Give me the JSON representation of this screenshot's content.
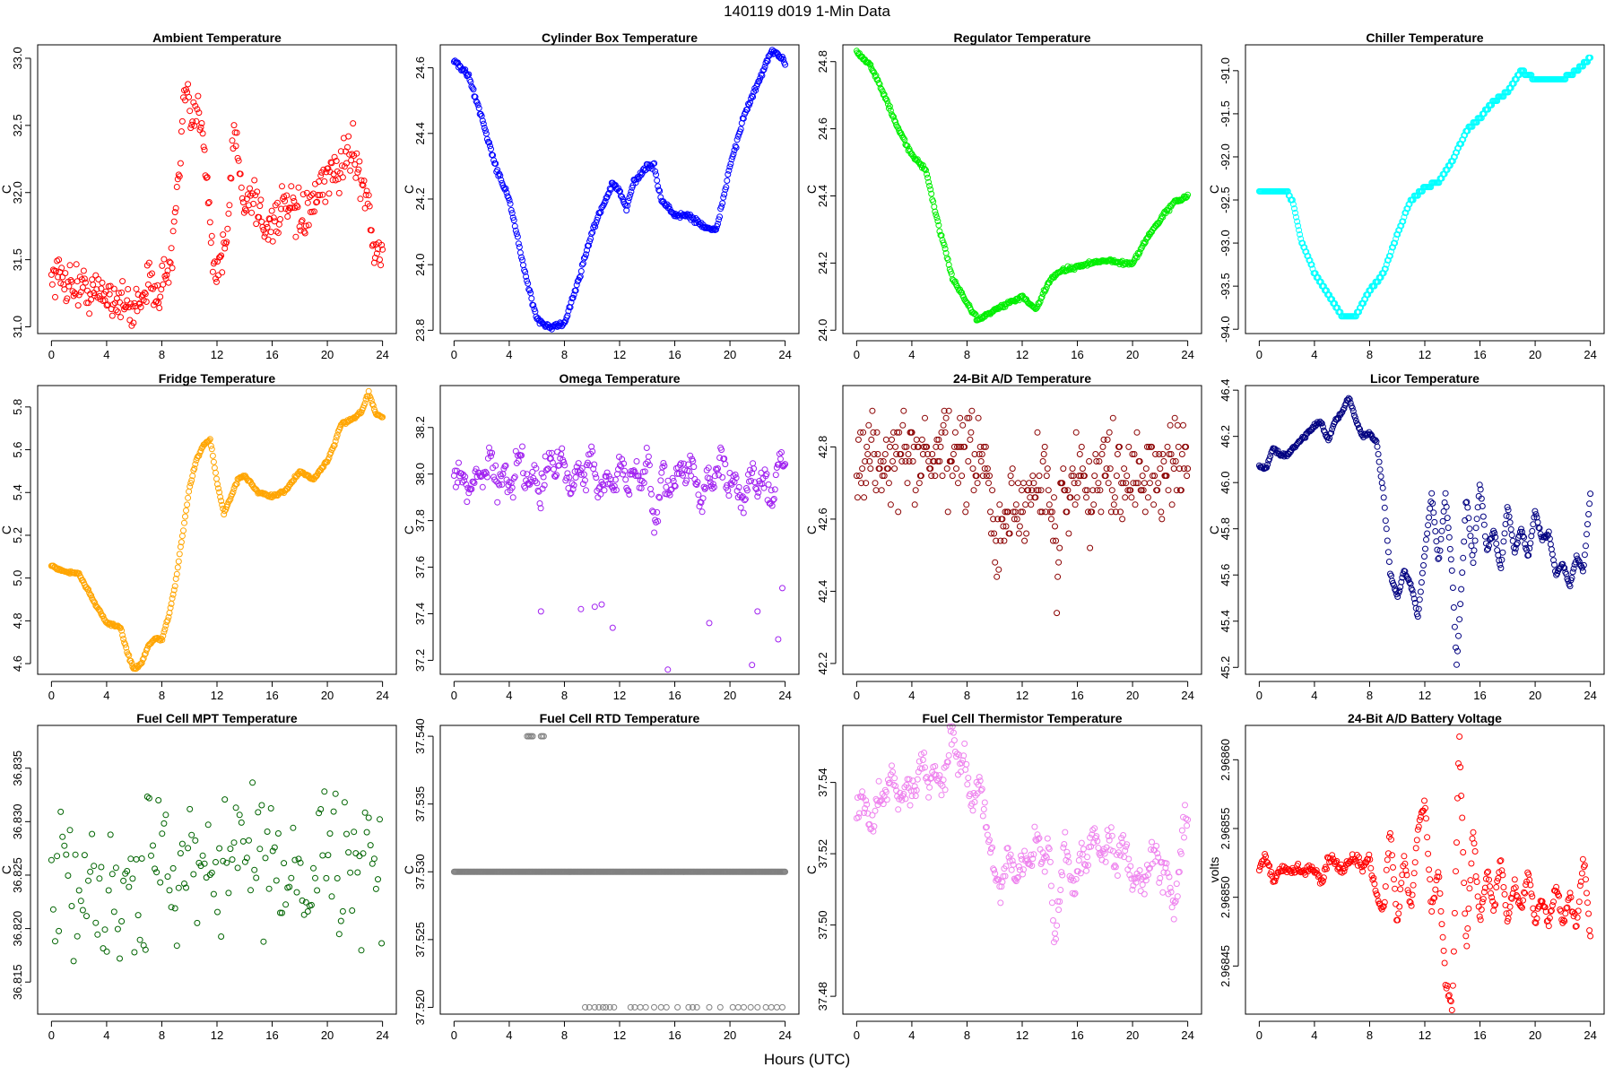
{
  "figure": {
    "main_title": "140119   d019   1-Min Data",
    "xlabel": "Hours (UTC)"
  },
  "chart_data": [
    {
      "type": "scatter",
      "title": "Ambient Temperature",
      "ylabel": "C",
      "color": "#ff0000",
      "xlim": [
        -1,
        25
      ],
      "ylim": [
        30.95,
        33.1
      ],
      "xticks": [
        0,
        4,
        8,
        12,
        16,
        20,
        24
      ],
      "yticks": [
        31.0,
        31.5,
        32.0,
        32.5,
        33.0
      ],
      "ytick_labels": [
        "31.0",
        "31.5",
        "32.0",
        "32.5",
        "33.0"
      ],
      "noise": 0.08,
      "series_x": [
        0,
        1,
        2,
        3,
        4,
        5,
        5.8,
        6.5,
        7,
        8,
        8.7,
        9,
        9.3,
        9.5,
        9.8,
        10.2,
        10.6,
        11,
        11.5,
        11.8,
        12.3,
        12.8,
        13.2,
        13.6,
        14,
        14.5,
        15,
        15.5,
        16,
        17,
        18,
        19,
        20,
        21,
        21.5,
        22,
        22.5,
        23,
        23.5,
        24
      ],
      "series_y": [
        31.4,
        31.35,
        31.3,
        31.25,
        31.25,
        31.2,
        31.1,
        31.25,
        31.3,
        31.3,
        31.5,
        31.9,
        32.1,
        32.6,
        32.7,
        32.5,
        32.6,
        32.5,
        31.8,
        31.4,
        31.5,
        31.7,
        32.5,
        32.2,
        31.9,
        32.0,
        31.9,
        31.7,
        31.8,
        31.9,
        31.8,
        31.9,
        32.1,
        32.2,
        32.3,
        32.3,
        32.1,
        31.9,
        31.5,
        31.6
      ]
    },
    {
      "type": "scatter",
      "title": "Cylinder Box Temperature",
      "ylabel": "C",
      "color": "#0000ff",
      "xlim": [
        -1,
        25
      ],
      "ylim": [
        23.79,
        24.67
      ],
      "xticks": [
        0,
        4,
        8,
        12,
        16,
        20,
        24
      ],
      "yticks": [
        23.8,
        24.0,
        24.2,
        24.4,
        24.6
      ],
      "ytick_labels": [
        "23.8",
        "24.0",
        "24.2",
        "24.4",
        "24.6"
      ],
      "noise": 0.004,
      "series_x": [
        0,
        1,
        2,
        3,
        4,
        5,
        6,
        7,
        8,
        9,
        10,
        11,
        11.5,
        12,
        12.5,
        13,
        14,
        14.5,
        15,
        16,
        17,
        18,
        19,
        20,
        21,
        22,
        23,
        24
      ],
      "series_y": [
        24.62,
        24.58,
        24.45,
        24.3,
        24.2,
        24.0,
        23.83,
        23.81,
        23.82,
        23.95,
        24.1,
        24.2,
        24.25,
        24.22,
        24.17,
        24.25,
        24.3,
        24.3,
        24.2,
        24.15,
        24.15,
        24.12,
        24.1,
        24.3,
        24.45,
        24.55,
        24.65,
        24.62
      ]
    },
    {
      "type": "scatter",
      "title": "Regulator Temperature",
      "ylabel": "C",
      "color": "#00ee00",
      "xlim": [
        -1,
        25
      ],
      "ylim": [
        23.99,
        24.85
      ],
      "xticks": [
        0,
        4,
        8,
        12,
        16,
        20,
        24
      ],
      "yticks": [
        24.0,
        24.2,
        24.4,
        24.6,
        24.8
      ],
      "ytick_labels": [
        "24.0",
        "24.2",
        "24.4",
        "24.6",
        "24.8"
      ],
      "noise": 0.003,
      "series_x": [
        0,
        1,
        2,
        3,
        4,
        5,
        6,
        7,
        8,
        8.8,
        10,
        11,
        12,
        13,
        14,
        15,
        16,
        17,
        18,
        19,
        20,
        21,
        22,
        23,
        24
      ],
      "series_y": [
        24.83,
        24.79,
        24.7,
        24.6,
        24.52,
        24.48,
        24.3,
        24.15,
        24.08,
        24.03,
        24.06,
        24.08,
        24.1,
        24.06,
        24.15,
        24.18,
        24.19,
        24.2,
        24.21,
        24.2,
        24.2,
        24.27,
        24.33,
        24.38,
        24.4
      ]
    },
    {
      "type": "scatter",
      "title": "Chiller Temperature",
      "ylabel": "C",
      "color": "#00ffff",
      "xlim": [
        -1,
        25
      ],
      "ylim": [
        -94.05,
        -90.7
      ],
      "xticks": [
        0,
        4,
        8,
        12,
        16,
        20,
        24
      ],
      "yticks": [
        -94.0,
        -93.5,
        -93.0,
        -92.5,
        -92.0,
        -91.5,
        -91.0
      ],
      "ytick_labels": [
        "-94.0",
        "-93.5",
        "-93.0",
        "-92.5",
        "-92.0",
        "-91.5",
        "-91.0"
      ],
      "noise": 0,
      "quantize": 0.05,
      "series_x": [
        0,
        1,
        2,
        2.5,
        3,
        4,
        5,
        6,
        7,
        8,
        9,
        10,
        11,
        12,
        13,
        14,
        15,
        16,
        17,
        18,
        19,
        20,
        21,
        22,
        23,
        24
      ],
      "series_y": [
        -92.4,
        -92.4,
        -92.4,
        -92.55,
        -92.95,
        -93.35,
        -93.6,
        -93.85,
        -93.85,
        -93.55,
        -93.35,
        -92.9,
        -92.5,
        -92.35,
        -92.3,
        -92.05,
        -91.7,
        -91.55,
        -91.35,
        -91.25,
        -91.0,
        -91.1,
        -91.1,
        -91.1,
        -91.0,
        -90.85
      ]
    },
    {
      "type": "scatter",
      "title": "Fridge Temperature",
      "ylabel": "C",
      "color": "#ffa500",
      "xlim": [
        -1,
        25
      ],
      "ylim": [
        4.55,
        5.9
      ],
      "xticks": [
        0,
        4,
        8,
        12,
        16,
        20,
        24
      ],
      "yticks": [
        4.6,
        4.8,
        5.0,
        5.2,
        5.4,
        5.6,
        5.8
      ],
      "ytick_labels": [
        "4.6",
        "4.8",
        "5.0",
        "5.2",
        "5.4",
        "5.6",
        "5.8"
      ],
      "noise": 0.003,
      "series_x": [
        0,
        0.5,
        1,
        2,
        3,
        4,
        5,
        5.5,
        6,
        6.5,
        7,
        7.5,
        8,
        8.5,
        9,
        9.5,
        10,
        10.5,
        11,
        11.5,
        12,
        12.5,
        13,
        13.5,
        14,
        15,
        16,
        17,
        18,
        19,
        20,
        20.5,
        21,
        22,
        22.5,
        23,
        23.5,
        24
      ],
      "series_y": [
        5.06,
        5.04,
        5.03,
        5.02,
        4.9,
        4.79,
        4.77,
        4.65,
        4.57,
        4.6,
        4.68,
        4.72,
        4.71,
        4.82,
        4.98,
        5.2,
        5.42,
        5.55,
        5.62,
        5.65,
        5.45,
        5.3,
        5.38,
        5.46,
        5.48,
        5.4,
        5.38,
        5.41,
        5.5,
        5.46,
        5.55,
        5.62,
        5.72,
        5.75,
        5.78,
        5.87,
        5.77,
        5.75
      ]
    },
    {
      "type": "scatter",
      "title": "Omega Temperature",
      "ylabel": "C",
      "color": "#a020f0",
      "xlim": [
        -1,
        25
      ],
      "ylim": [
        37.14,
        38.38
      ],
      "xticks": [
        0,
        4,
        8,
        12,
        16,
        20,
        24
      ],
      "yticks": [
        37.2,
        37.4,
        37.6,
        37.8,
        38.0,
        38.2
      ],
      "ytick_labels": [
        "37.2",
        "37.4",
        "37.6",
        "37.8",
        "38.0",
        "38.2"
      ],
      "noise": 0.03,
      "wave_amp": 0.09,
      "series_x": [
        0,
        2,
        4,
        6,
        8,
        9,
        10,
        11,
        12,
        13,
        14,
        14.5,
        15,
        16,
        17,
        18,
        19,
        20,
        21,
        22,
        23,
        24
      ],
      "series_y": [
        37.97,
        38.0,
        38.0,
        38.0,
        38.02,
        38.0,
        38.0,
        38.0,
        37.95,
        38.0,
        38.05,
        37.75,
        37.95,
        38.0,
        38.0,
        37.95,
        37.98,
        38.0,
        37.95,
        37.95,
        37.95,
        38.05
      ],
      "outliers_x": [
        6.3,
        9.2,
        10.2,
        10.7,
        11.5,
        15.5,
        18.5,
        21.6,
        22,
        23.5,
        23.8
      ],
      "outliers_y": [
        37.41,
        37.42,
        37.43,
        37.44,
        37.34,
        37.16,
        37.36,
        37.18,
        37.41,
        37.29,
        37.51
      ]
    },
    {
      "type": "scatter",
      "title": "24-Bit A/D Temperature",
      "ylabel": "C",
      "color": "#8b0000",
      "xlim": [
        -1,
        25
      ],
      "ylim": [
        42.17,
        42.97
      ],
      "xticks": [
        0,
        4,
        8,
        12,
        16,
        20,
        24
      ],
      "yticks": [
        42.2,
        42.4,
        42.6,
        42.8
      ],
      "ytick_labels": [
        "42.2",
        "42.4",
        "42.6",
        "42.8"
      ],
      "noise": 0.06,
      "quantize": 0.02,
      "series_x": [
        0,
        2,
        4,
        6,
        8,
        9,
        9.5,
        10,
        11,
        12,
        13,
        14,
        14.5,
        15,
        16,
        17,
        18,
        19,
        20,
        21,
        22,
        23,
        24
      ],
      "series_y": [
        42.77,
        42.77,
        42.77,
        42.77,
        42.77,
        42.77,
        42.7,
        42.55,
        42.6,
        42.62,
        42.72,
        42.7,
        42.45,
        42.68,
        42.72,
        42.7,
        42.72,
        42.74,
        42.74,
        42.72,
        42.72,
        42.74,
        42.76
      ]
    },
    {
      "type": "scatter",
      "title": "Licor Temperature",
      "ylabel": "C",
      "color": "#000080",
      "xlim": [
        -1,
        25
      ],
      "ylim": [
        45.17,
        46.42
      ],
      "xticks": [
        0,
        4,
        8,
        12,
        16,
        20,
        24
      ],
      "yticks": [
        45.2,
        45.4,
        45.6,
        45.8,
        46.0,
        46.2,
        46.4
      ],
      "ytick_labels": [
        "45.2",
        "45.4",
        "45.6",
        "45.8",
        "46.0",
        "46.2",
        "46.4"
      ],
      "noise": 0.004,
      "series_x": [
        0,
        0.5,
        1,
        1.5,
        2,
        3,
        4,
        4.5,
        5,
        5.5,
        6,
        6.5,
        7,
        7.5,
        8,
        8.5,
        9,
        9.5,
        10,
        10.5,
        11,
        11.5,
        12,
        12.5,
        13,
        13.5,
        14,
        14.3,
        14.8,
        15,
        15.5,
        16,
        16.5,
        17,
        17.5,
        18,
        18.5,
        19,
        19.5,
        20,
        20.5,
        21,
        21.5,
        22,
        22.5,
        23,
        23.5,
        24
      ],
      "series_y": [
        46.07,
        46.06,
        46.15,
        46.12,
        46.12,
        46.18,
        46.25,
        46.26,
        46.18,
        46.27,
        46.3,
        46.37,
        46.27,
        46.2,
        46.21,
        46.18,
        45.95,
        45.6,
        45.5,
        45.62,
        45.55,
        45.42,
        45.7,
        45.95,
        45.65,
        45.95,
        45.6,
        45.2,
        45.7,
        45.95,
        45.65,
        46.0,
        45.7,
        45.8,
        45.62,
        45.9,
        45.7,
        45.8,
        45.68,
        45.88,
        45.75,
        45.78,
        45.6,
        45.65,
        45.55,
        45.68,
        45.62,
        45.95
      ]
    },
    {
      "type": "scatter",
      "title": "Fuel Cell MPT Temperature",
      "ylabel": "C",
      "color": "#006400",
      "xlim": [
        -1,
        25
      ],
      "ylim": [
        36.812,
        36.839
      ],
      "xticks": [
        0,
        4,
        8,
        12,
        16,
        20,
        24
      ],
      "yticks": [
        36.815,
        36.82,
        36.825,
        36.83,
        36.835
      ],
      "ytick_labels": [
        "36.815",
        "36.820",
        "36.825",
        "36.830",
        "36.835"
      ],
      "noise": 0.0032,
      "step": 2,
      "series_x": [
        0,
        4,
        6,
        8,
        10,
        12,
        16,
        20,
        24
      ],
      "series_y": [
        36.824,
        36.824,
        36.823,
        36.826,
        36.827,
        36.827,
        36.826,
        36.827,
        36.826
      ]
    },
    {
      "type": "scatter",
      "title": "Fuel Cell RTD Temperature",
      "ylabel": "C",
      "color": "#808080",
      "xlim": [
        -1,
        25
      ],
      "ylim": [
        37.5195,
        37.5408
      ],
      "xticks": [
        0,
        4,
        8,
        12,
        16,
        20,
        24
      ],
      "yticks": [
        37.52,
        37.525,
        37.53,
        37.535,
        37.54
      ],
      "ytick_labels": [
        "37.520",
        "37.525",
        "37.530",
        "37.535",
        "37.540"
      ],
      "noise": 0,
      "series_x": [
        0,
        24
      ],
      "series_y": [
        37.53,
        37.53
      ],
      "outliers_x": [
        5.3,
        5.4,
        5.5,
        5.6,
        5.7,
        6.3,
        6.4,
        6.5,
        9.5,
        9.8,
        10.2,
        10.5,
        10.8,
        11.0,
        11.3,
        11.6,
        12.8,
        13.1,
        13.5,
        13.9,
        14.5,
        15.0,
        15.4,
        16.2,
        17.0,
        17.3,
        17.6,
        18.5,
        19.3,
        20.2,
        20.6,
        21.0,
        21.5,
        22.0,
        22.6,
        23.0,
        23.4,
        23.8
      ],
      "outliers_y": [
        37.54,
        37.54,
        37.54,
        37.54,
        37.54,
        37.54,
        37.54,
        37.54,
        37.52,
        37.52,
        37.52,
        37.52,
        37.52,
        37.52,
        37.52,
        37.52,
        37.52,
        37.52,
        37.52,
        37.52,
        37.52,
        37.52,
        37.52,
        37.52,
        37.52,
        37.52,
        37.52,
        37.52,
        37.52,
        37.52,
        37.52,
        37.52,
        37.52,
        37.52,
        37.52,
        37.52,
        37.52,
        37.52
      ]
    },
    {
      "type": "scatter",
      "title": "Fuel Cell Thermistor Temperature",
      "ylabel": "C",
      "color": "#ee82ee",
      "xlim": [
        -1,
        25
      ],
      "ylim": [
        37.475,
        37.556
      ],
      "xticks": [
        0,
        4,
        8,
        12,
        16,
        20,
        24
      ],
      "yticks": [
        37.48,
        37.5,
        37.52,
        37.54
      ],
      "ytick_labels": [
        "37.48",
        "37.50",
        "37.52",
        "37.54"
      ],
      "noise": 0.002,
      "wave_amp": 0.006,
      "series_x": [
        0,
        2,
        4,
        6,
        7,
        8,
        9,
        10,
        11,
        12,
        13,
        14,
        14.3,
        15,
        16,
        17,
        18,
        19,
        20,
        21,
        22,
        23,
        24
      ],
      "series_y": [
        37.53,
        37.536,
        37.54,
        37.543,
        37.55,
        37.542,
        37.538,
        37.51,
        37.52,
        37.51,
        37.525,
        37.52,
        37.49,
        37.52,
        37.515,
        37.52,
        37.525,
        37.52,
        37.515,
        37.515,
        37.515,
        37.51,
        37.53
      ]
    },
    {
      "type": "scatter",
      "title": "24-Bit A/D Battery Voltage",
      "ylabel": "volts",
      "color": "#ff0000",
      "xlim": [
        -1,
        25
      ],
      "ylim": [
        2.968415,
        2.968625
      ],
      "xticks": [
        0,
        4,
        8,
        12,
        16,
        20,
        24
      ],
      "yticks": [
        2.96845,
        2.9685,
        2.96855,
        2.9686
      ],
      "ytick_labels": [
        "2.96845",
        "2.96850",
        "2.96855",
        "2.96860"
      ],
      "noise": 2e-06,
      "series_x": [
        0,
        0.5,
        1,
        1.5,
        2,
        3,
        4,
        4.5,
        5,
        6,
        7,
        7.5,
        8,
        8.5,
        9,
        9.5,
        10,
        10.5,
        11,
        11.5,
        12,
        12.5,
        13,
        13.5,
        14,
        14.5,
        15,
        15.5,
        16,
        16.5,
        17,
        17.5,
        18,
        18.5,
        19,
        19.5,
        20,
        20.5,
        21,
        21.5,
        22,
        22.5,
        23,
        23.5,
        24
      ],
      "series_y": [
        2.96852,
        2.96853,
        2.96851,
        2.96852,
        2.96852,
        2.96852,
        2.96852,
        2.96851,
        2.96853,
        2.96852,
        2.96853,
        2.96852,
        2.96853,
        2.9685,
        2.96849,
        2.96855,
        2.96848,
        2.96853,
        2.96849,
        2.96855,
        2.96857,
        2.96849,
        2.96852,
        2.96844,
        2.96842,
        2.96862,
        2.96846,
        2.96855,
        2.96848,
        2.96852,
        2.96849,
        2.96853,
        2.96848,
        2.96851,
        2.96849,
        2.96852,
        2.96848,
        2.9685,
        2.96848,
        2.96851,
        2.96848,
        2.9685,
        2.96848,
        2.96853,
        2.96847
      ]
    }
  ]
}
